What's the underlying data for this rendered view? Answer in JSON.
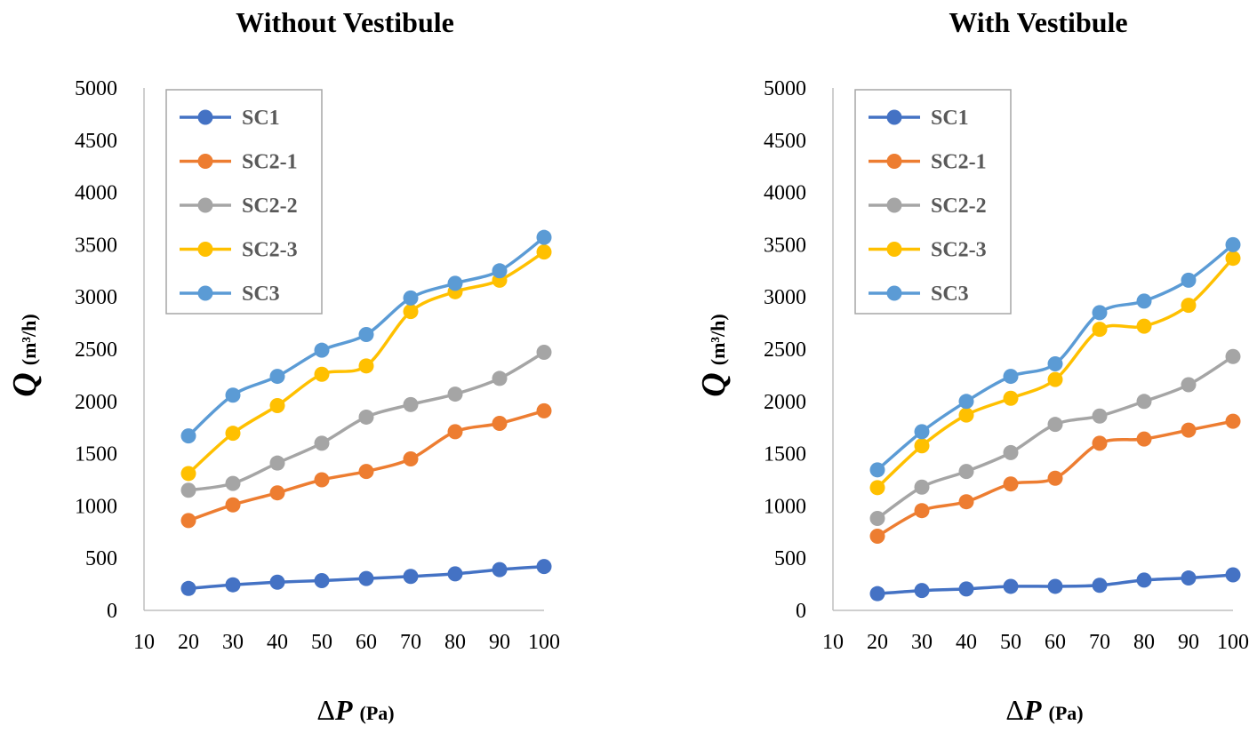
{
  "chart_data": [
    {
      "type": "line",
      "title": "Without Vestibule",
      "ylabel": {
        "main": "Q",
        "unit": "(m³/h)"
      },
      "xlabel": {
        "delta": "Δ",
        "main": "P",
        "unit": "(Pa)"
      },
      "x_ticks": [
        "10",
        "20",
        "30",
        "40",
        "50",
        "60",
        "70",
        "80",
        "90",
        "100"
      ],
      "y_ticks": [
        "0",
        "500",
        "1000",
        "1500",
        "2000",
        "2500",
        "3000",
        "3500",
        "4000",
        "4500",
        "5000"
      ],
      "ylim": [
        0,
        5000
      ],
      "x": [
        20,
        30,
        40,
        50,
        60,
        70,
        80,
        90,
        100
      ],
      "legend_position": "top-left",
      "grid": false,
      "series": [
        {
          "name": "SC1",
          "color": "#4472C4",
          "values": [
            210,
            245,
            270,
            285,
            305,
            325,
            350,
            390,
            420
          ]
        },
        {
          "name": "SC2-1",
          "color": "#ED7D31",
          "values": [
            860,
            1010,
            1125,
            1250,
            1330,
            1450,
            1710,
            1790,
            1910
          ]
        },
        {
          "name": "SC2-2",
          "color": "#A5A5A5",
          "values": [
            1150,
            1215,
            1410,
            1600,
            1850,
            1970,
            2070,
            2220,
            2470
          ]
        },
        {
          "name": "SC2-3",
          "color": "#FFC000",
          "values": [
            1310,
            1695,
            1960,
            2260,
            2340,
            2860,
            3050,
            3160,
            3430
          ]
        },
        {
          "name": "SC3",
          "color": "#5B9BD5",
          "values": [
            1670,
            2060,
            2240,
            2490,
            2640,
            2990,
            3130,
            3250,
            3570
          ]
        }
      ]
    },
    {
      "type": "line",
      "title": "With Vestibule",
      "ylabel": {
        "main": "Q",
        "unit": "(m³/h)"
      },
      "xlabel": {
        "delta": "Δ",
        "main": "P",
        "unit": "(Pa)"
      },
      "x_ticks": [
        "10",
        "20",
        "30",
        "40",
        "50",
        "60",
        "70",
        "80",
        "90",
        "100"
      ],
      "y_ticks": [
        "0",
        "500",
        "1000",
        "1500",
        "2000",
        "2500",
        "3000",
        "3500",
        "4000",
        "4500",
        "5000"
      ],
      "ylim": [
        0,
        5000
      ],
      "x": [
        20,
        30,
        40,
        50,
        60,
        70,
        80,
        90,
        100
      ],
      "legend_position": "top-left",
      "grid": false,
      "series": [
        {
          "name": "SC1",
          "color": "#4472C4",
          "values": [
            160,
            190,
            205,
            230,
            230,
            240,
            290,
            310,
            340
          ]
        },
        {
          "name": "SC2-1",
          "color": "#ED7D31",
          "values": [
            710,
            955,
            1040,
            1210,
            1265,
            1600,
            1640,
            1725,
            1810
          ]
        },
        {
          "name": "SC2-2",
          "color": "#A5A5A5",
          "values": [
            880,
            1180,
            1330,
            1510,
            1780,
            1860,
            2000,
            2160,
            2430
          ]
        },
        {
          "name": "SC2-3",
          "color": "#FFC000",
          "values": [
            1175,
            1575,
            1870,
            2030,
            2210,
            2690,
            2720,
            2920,
            3370
          ]
        },
        {
          "name": "SC3",
          "color": "#5B9BD5",
          "values": [
            1345,
            1710,
            2000,
            2240,
            2360,
            2850,
            2960,
            3160,
            3500
          ]
        }
      ]
    }
  ]
}
